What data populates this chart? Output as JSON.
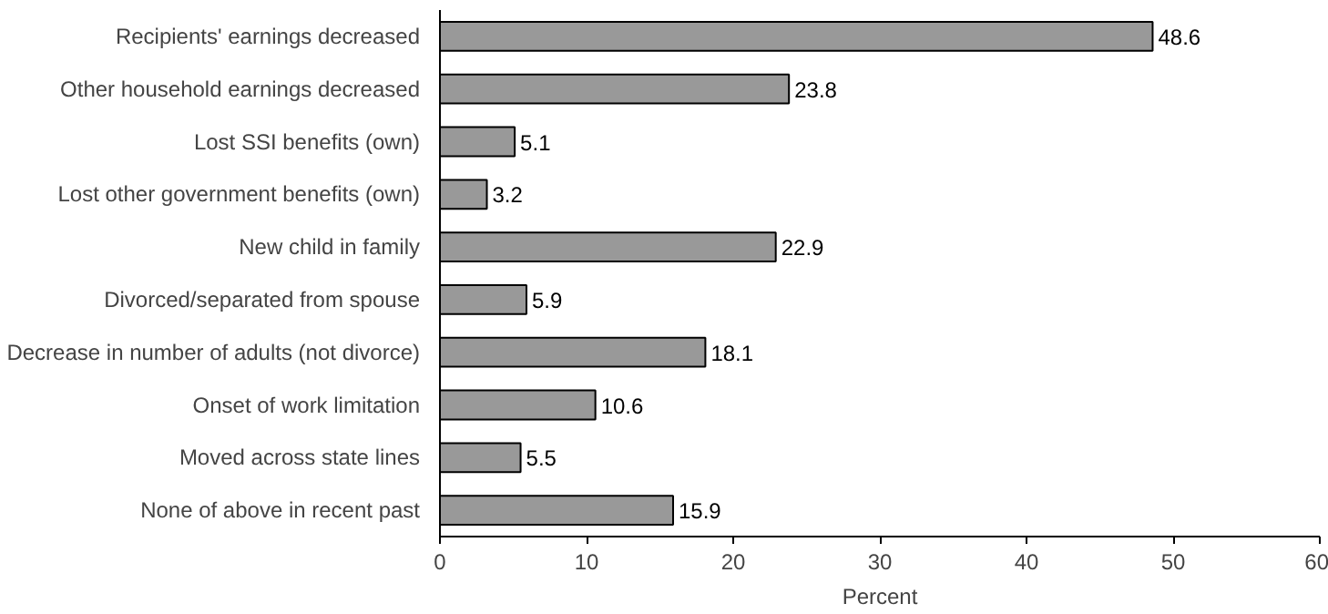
{
  "chart_data": {
    "type": "bar",
    "orientation": "horizontal",
    "xlabel": "Percent",
    "categories": [
      "Recipients' earnings decreased",
      "Other household earnings decreased",
      "Lost SSI benefits (own)",
      "Lost other government benefits (own)",
      "New child in family",
      "Divorced/separated from spouse",
      "Decrease in number of adults (not divorce)",
      "Onset of work limitation",
      "Moved across state lines",
      "None of above in recent past"
    ],
    "values": [
      48.6,
      23.8,
      5.1,
      3.2,
      22.9,
      5.9,
      18.1,
      10.6,
      5.5,
      15.9
    ],
    "color": "#999999",
    "xlim": [
      0,
      60
    ],
    "xticks": [
      0,
      10,
      20,
      30,
      40,
      50,
      60
    ],
    "grid": false,
    "data_labels": true
  }
}
